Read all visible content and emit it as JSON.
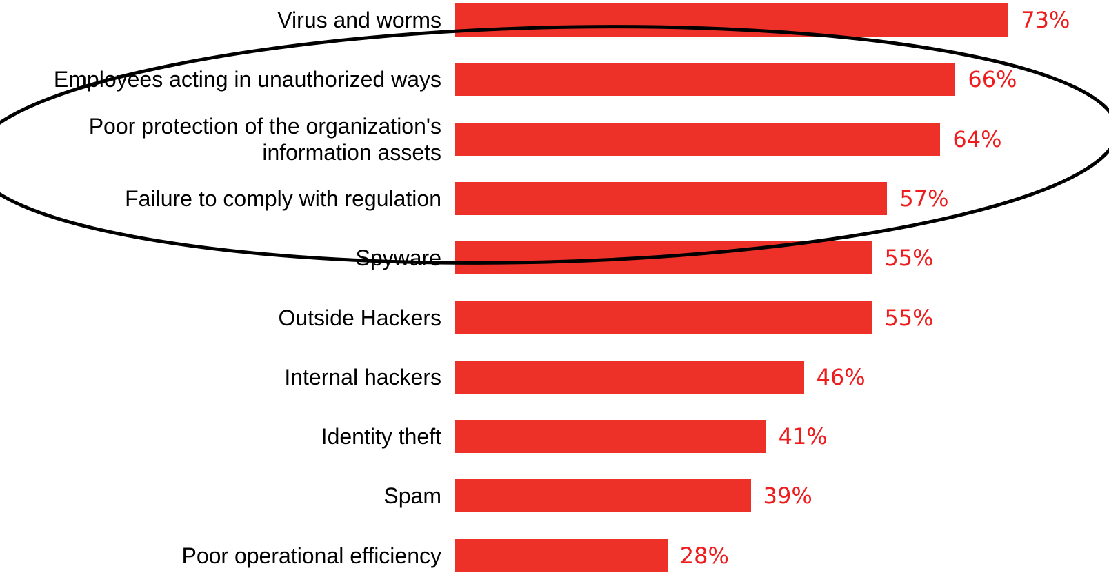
{
  "chart_data": {
    "type": "bar",
    "orientation": "horizontal",
    "categories": [
      "Virus and worms",
      "Employees acting in unauthorized ways",
      "Poor protection of the organization's information assets",
      "Failure to comply with regulation",
      "Spyware",
      "Outside Hackers",
      "Internal hackers",
      "Identity theft",
      "Spam",
      "Poor operational efficiency"
    ],
    "values": [
      73,
      66,
      64,
      57,
      55,
      55,
      46,
      41,
      39,
      28
    ],
    "value_labels": [
      "73%",
      "66%",
      "64%",
      "57%",
      "55%",
      "55%",
      "46%",
      "41%",
      "39%",
      "28%"
    ],
    "color": "#ee3128",
    "label_color": "#ee1c1c"
  }
}
